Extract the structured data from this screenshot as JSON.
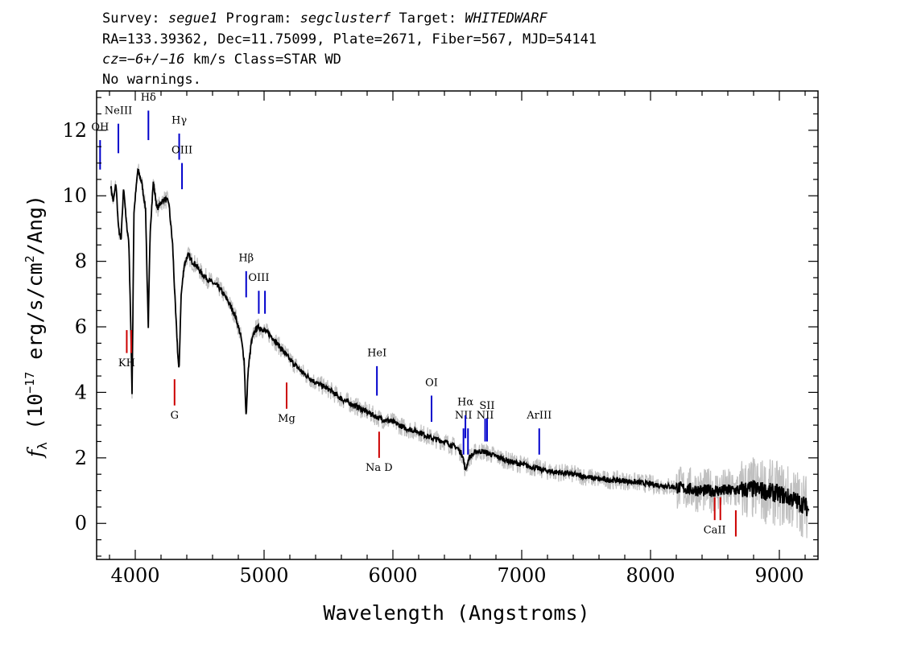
{
  "header": {
    "line1_parts": [
      {
        "text": "Survey: ",
        "italic": false
      },
      {
        "text": "segue1",
        "italic": true
      },
      {
        "text": " Program: ",
        "italic": false
      },
      {
        "text": "segclusterf",
        "italic": true
      },
      {
        "text": " Target: ",
        "italic": false
      },
      {
        "text": "WHITEDWARF",
        "italic": true
      }
    ],
    "line2": "RA=133.39362, Dec=11.75099, Plate=2671, Fiber=567, MJD=54141",
    "line3_parts": [
      {
        "text": "cz=−6+/−16",
        "italic": true
      },
      {
        "text": " km/s Class=STAR WD",
        "italic": false
      }
    ],
    "line4": "No warnings."
  },
  "chart_data": {
    "type": "line",
    "xlabel": "Wavelength (Angstroms)",
    "ylabel_parts": {
      "symbol": "f",
      "sub": "λ",
      "pre": " (10",
      "exp": "−17",
      "mid": " erg/s/cm",
      "exp2": "2",
      "post": "/Ang)"
    },
    "xlim": [
      3700,
      9300
    ],
    "ylim": [
      -1.1,
      13.2
    ],
    "xticks": [
      4000,
      5000,
      6000,
      7000,
      8000,
      9000
    ],
    "yticks": [
      0,
      2,
      4,
      6,
      8,
      10,
      12
    ],
    "colors": {
      "flux": "#000000",
      "noise": "#c0c0c0",
      "emission": "#0000cc",
      "absorption": "#cc0000"
    },
    "flux": {
      "x": [
        3810,
        3830,
        3850,
        3870,
        3890,
        3900,
        3910,
        3930,
        3950,
        3960,
        3975,
        3990,
        4020,
        4050,
        4080,
        4101,
        4115,
        4140,
        4170,
        4200,
        4230,
        4260,
        4290,
        4310,
        4330,
        4340,
        4355,
        4380,
        4410,
        4440,
        4470,
        4520,
        4580,
        4650,
        4720,
        4780,
        4820,
        4845,
        4861,
        4875,
        4900,
        4930,
        4960,
        5000,
        5030,
        5060,
        5100,
        5200,
        5300,
        5400,
        5500,
        5600,
        5700,
        5800,
        5900,
        6000,
        6100,
        6200,
        6300,
        6400,
        6500,
        6540,
        6563,
        6590,
        6650,
        6700,
        6800,
        6900,
        7000,
        7200,
        7400,
        7600,
        7800,
        8000,
        8200,
        8400,
        8600,
        8800,
        9000,
        9100,
        9200,
        9230
      ],
      "y": [
        10.3,
        9.8,
        10.4,
        9.0,
        8.6,
        9.5,
        10.3,
        9.2,
        8.6,
        7.0,
        4.0,
        9.5,
        10.8,
        10.4,
        9.6,
        5.9,
        8.9,
        10.4,
        9.6,
        9.8,
        9.9,
        9.8,
        8.5,
        6.7,
        5.2,
        4.6,
        6.9,
        7.9,
        8.2,
        8.0,
        7.9,
        7.6,
        7.4,
        7.2,
        6.8,
        6.3,
        5.7,
        5.0,
        3.2,
        4.6,
        5.5,
        5.9,
        6.0,
        5.9,
        5.8,
        5.7,
        5.5,
        5.0,
        4.6,
        4.3,
        4.1,
        3.8,
        3.6,
        3.4,
        3.2,
        3.1,
        2.9,
        2.8,
        2.6,
        2.5,
        2.3,
        2.1,
        1.6,
        2.0,
        2.2,
        2.2,
        2.05,
        1.9,
        1.8,
        1.6,
        1.5,
        1.35,
        1.3,
        1.2,
        1.1,
        1.0,
        1.0,
        1.05,
        0.9,
        0.75,
        0.55,
        0.4
      ]
    },
    "lines": [
      {
        "label": "OH",
        "wave": 3727,
        "y0": 10.8,
        "y1": 11.7,
        "kind": "emission",
        "label_y": 12.0
      },
      {
        "label": "NeIII",
        "wave": 3869,
        "y0": 11.3,
        "y1": 12.2,
        "kind": "emission",
        "label_y": 12.5
      },
      {
        "label": "Hδ",
        "wave": 4102,
        "y0": 11.7,
        "y1": 12.6,
        "kind": "emission",
        "label_y": 12.9
      },
      {
        "label": "Hγ",
        "wave": 4341,
        "y0": 11.1,
        "y1": 11.9,
        "kind": "emission",
        "label_y": 12.2
      },
      {
        "label": "OIII",
        "wave": 4363,
        "y0": 10.2,
        "y1": 11.0,
        "kind": "emission",
        "label_y": 11.3
      },
      {
        "label": "Hβ",
        "wave": 4861,
        "y0": 6.9,
        "y1": 7.7,
        "kind": "emission",
        "label_y": 8.0
      },
      {
        "label": "OIII",
        "wave": 4959,
        "y0": 6.4,
        "y1": 7.1,
        "kind": "emission",
        "label_y": 7.4
      },
      {
        "label": "",
        "wave": 5007,
        "y0": 6.4,
        "y1": 7.1,
        "kind": "emission",
        "label_y": 7.4
      },
      {
        "label": "HeI",
        "wave": 5876,
        "y0": 3.9,
        "y1": 4.8,
        "kind": "emission",
        "label_y": 5.1
      },
      {
        "label": "OI",
        "wave": 6300,
        "y0": 3.1,
        "y1": 3.9,
        "kind": "emission",
        "label_y": 4.2
      },
      {
        "label": "NII",
        "wave": 6548,
        "y0": 2.1,
        "y1": 2.9,
        "kind": "emission",
        "label_y": 3.2
      },
      {
        "label": "Hα",
        "wave": 6563,
        "y0": 2.6,
        "y1": 3.3,
        "kind": "emission",
        "label_y": 3.6
      },
      {
        "label": "",
        "wave": 6583,
        "y0": 2.1,
        "y1": 2.9,
        "kind": "emission",
        "label_y": 3.2
      },
      {
        "label": "NII",
        "wave": 6716,
        "y0": 2.5,
        "y1": 3.2,
        "kind": "emission",
        "label_y": 3.2
      },
      {
        "label": "SII",
        "wave": 6731,
        "y0": 2.5,
        "y1": 3.2,
        "kind": "emission",
        "label_y": 3.5
      },
      {
        "label": "ArIII",
        "wave": 7136,
        "y0": 2.1,
        "y1": 2.9,
        "kind": "emission",
        "label_y": 3.2
      },
      {
        "label": "KH",
        "wave": 3934,
        "y0": 5.2,
        "y1": 5.9,
        "kind": "absorption",
        "label_y": 4.8
      },
      {
        "label": "",
        "wave": 3969,
        "y0": 5.2,
        "y1": 5.9,
        "kind": "absorption",
        "label_y": 4.8
      },
      {
        "label": "G",
        "wave": 4305,
        "y0": 3.6,
        "y1": 4.4,
        "kind": "absorption",
        "label_y": 3.2
      },
      {
        "label": "Mg",
        "wave": 5175,
        "y0": 3.5,
        "y1": 4.3,
        "kind": "absorption",
        "label_y": 3.1
      },
      {
        "label": "Na D",
        "wave": 5893,
        "y0": 2.0,
        "y1": 2.8,
        "kind": "absorption",
        "label_y": 1.6
      },
      {
        "label": "CaII",
        "wave": 8498,
        "y0": 0.1,
        "y1": 0.8,
        "kind": "absorption",
        "label_y": -0.3
      },
      {
        "label": "",
        "wave": 8542,
        "y0": 0.1,
        "y1": 0.8,
        "kind": "absorption",
        "label_y": -0.3
      },
      {
        "label": "",
        "wave": 8662,
        "y0": -0.4,
        "y1": 0.4,
        "kind": "absorption",
        "label_y": -0.3
      }
    ]
  }
}
